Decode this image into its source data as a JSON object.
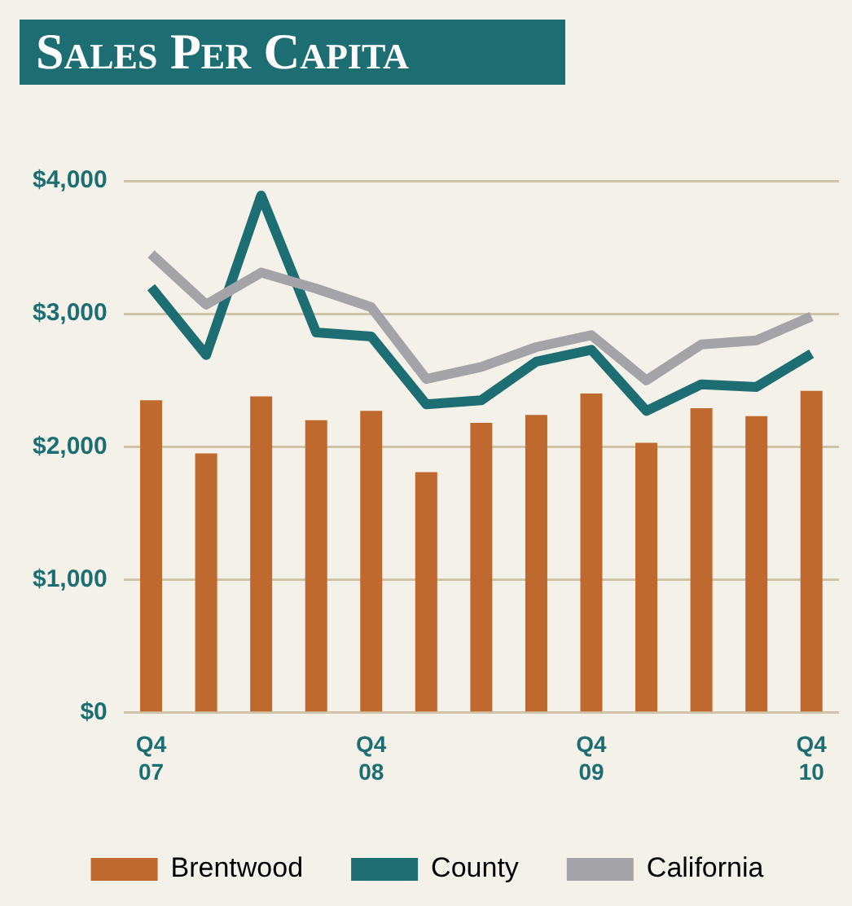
{
  "chart_data": {
    "type": "bar",
    "title": "Sales Per Capita",
    "categories": [
      "Q4 07",
      null,
      null,
      null,
      "Q4 08",
      null,
      null,
      null,
      "Q4 09",
      null,
      null,
      null,
      "Q4 10"
    ],
    "series": [
      {
        "name": "Brentwood",
        "type": "bar",
        "color": "#c0692e",
        "values": [
          2350,
          1950,
          2380,
          2200,
          2270,
          1810,
          2180,
          2240,
          2400,
          2030,
          2290,
          2230,
          2420
        ]
      },
      {
        "name": "County",
        "type": "line",
        "color": "#1d6e72",
        "values": [
          3200,
          2690,
          3890,
          2860,
          2830,
          2320,
          2350,
          2640,
          2730,
          2270,
          2470,
          2450,
          2700
        ]
      },
      {
        "name": "California",
        "type": "line",
        "color": "#a3a3a8",
        "values": [
          3450,
          3070,
          3310,
          3190,
          3050,
          2510,
          2600,
          2750,
          2840,
          2500,
          2770,
          2800,
          2980
        ]
      }
    ],
    "ylim": [
      0,
      4000
    ],
    "yticks": [
      {
        "value": 0,
        "label": "$0"
      },
      {
        "value": 1000,
        "label": "$1,000"
      },
      {
        "value": 2000,
        "label": "$2,000"
      },
      {
        "value": 3000,
        "label": "$3,000"
      },
      {
        "value": 4000,
        "label": "$4,000"
      }
    ],
    "grid": "y",
    "legend": "bottom",
    "marker": "none",
    "line_style": "solid"
  }
}
